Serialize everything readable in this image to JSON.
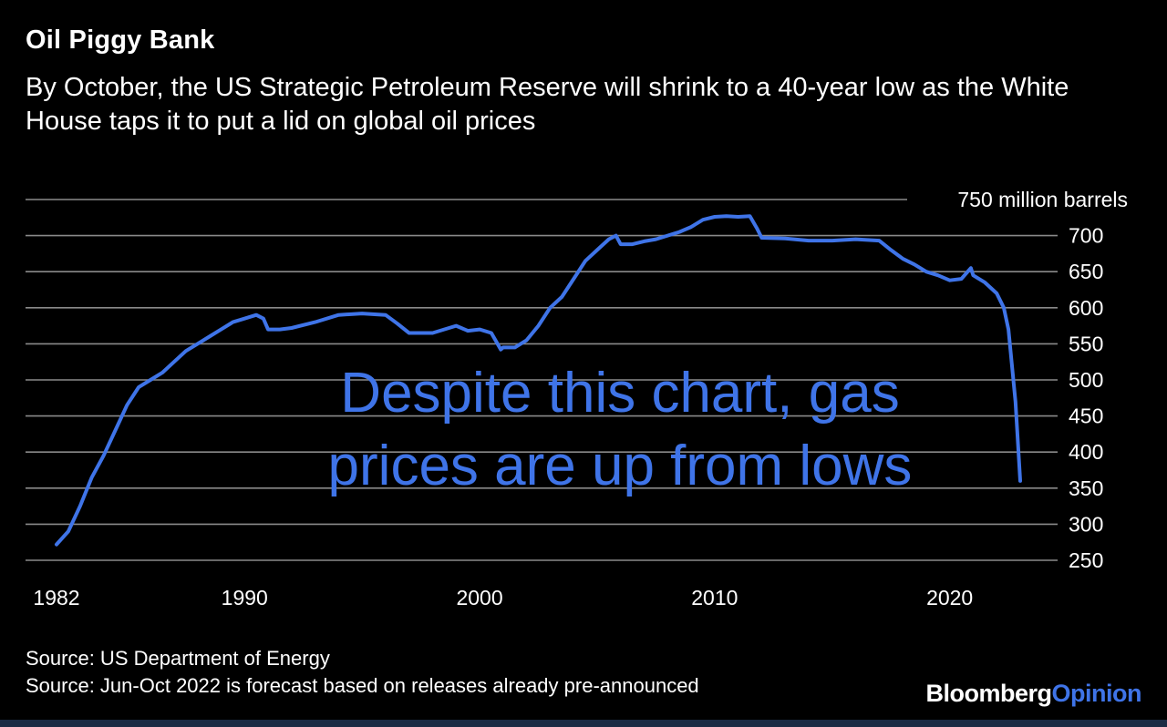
{
  "header": {
    "title": "Oil Piggy Bank",
    "subtitle": "By October, the US Strategic Petroleum Reserve will shrink to a 40-year low as the White House taps it to put a lid on global oil prices"
  },
  "annotation": {
    "text": "Despite this chart, gas prices are up from lows",
    "color": "#3f74e8"
  },
  "footer": {
    "source_1": "Source: US Department of Energy",
    "source_2": "Source: Jun-Oct 2022 is forecast based on releases already pre-announced",
    "logo_brand": "Bloomberg",
    "logo_product": "Opinion",
    "logo_product_color": "#3f74e8"
  },
  "colors": {
    "background": "#000000",
    "series": "#3f74e8",
    "grid": "#8a8a8a"
  },
  "chart_data": {
    "type": "line",
    "title": "Oil Piggy Bank",
    "ylabel": "",
    "xlabel": "",
    "ylim": [
      250,
      750
    ],
    "xlim": [
      1982,
      2023
    ],
    "y_ticks": [
      250,
      300,
      350,
      400,
      450,
      500,
      550,
      600,
      650,
      700,
      750
    ],
    "y_tick_labels": [
      "250",
      "300",
      "350",
      "400",
      "450",
      "500",
      "550",
      "600",
      "650",
      "700",
      "750 million barrels"
    ],
    "x_ticks": [
      1982,
      1990,
      2000,
      2010,
      2020
    ],
    "x_tick_labels": [
      "1982",
      "1990",
      "2000",
      "2010",
      "2020"
    ],
    "grid": true,
    "series": [
      {
        "name": "",
        "color": "#3f74e8",
        "x": [
          1982.0,
          1982.5,
          1983.0,
          1983.5,
          1984.0,
          1984.5,
          1985.0,
          1985.5,
          1986.0,
          1986.5,
          1987.0,
          1987.5,
          1988.0,
          1988.5,
          1989.0,
          1989.5,
          1990.0,
          1990.5,
          1990.8,
          1991.0,
          1991.5,
          1992.0,
          1993.0,
          1994.0,
          1995.0,
          1996.0,
          1996.5,
          1997.0,
          1997.5,
          1998.0,
          1999.0,
          1999.5,
          2000.0,
          2000.5,
          2000.9,
          2001.0,
          2001.5,
          2002.0,
          2002.5,
          2003.0,
          2003.5,
          2004.0,
          2004.5,
          2005.0,
          2005.5,
          2005.8,
          2006.0,
          2006.5,
          2007.0,
          2007.5,
          2008.0,
          2008.5,
          2009.0,
          2009.5,
          2010.0,
          2010.5,
          2011.0,
          2011.5,
          2011.8,
          2012.0,
          2013.0,
          2014.0,
          2015.0,
          2016.0,
          2017.0,
          2017.5,
          2018.0,
          2018.5,
          2019.0,
          2019.5,
          2020.0,
          2020.5,
          2020.9,
          2021.0,
          2021.5,
          2022.0,
          2022.3,
          2022.5,
          2022.8,
          2023.0
        ],
        "values": [
          272,
          290,
          325,
          365,
          395,
          430,
          465,
          490,
          500,
          510,
          525,
          540,
          550,
          560,
          570,
          580,
          585,
          590,
          585,
          570,
          570,
          572,
          580,
          590,
          592,
          590,
          578,
          565,
          565,
          565,
          575,
          568,
          570,
          565,
          542,
          545,
          545,
          555,
          575,
          600,
          615,
          640,
          665,
          680,
          695,
          700,
          688,
          688,
          692,
          695,
          700,
          705,
          712,
          722,
          726,
          727,
          726,
          727,
          710,
          697,
          696,
          693,
          693,
          695,
          693,
          680,
          668,
          660,
          650,
          645,
          638,
          640,
          655,
          645,
          635,
          620,
          600,
          570,
          470,
          360
        ]
      }
    ]
  }
}
